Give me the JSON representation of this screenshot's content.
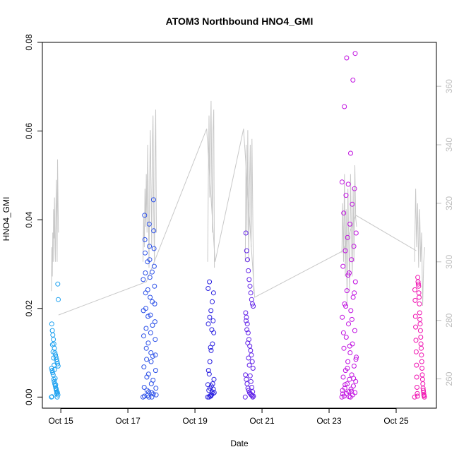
{
  "chart_data": {
    "type": "scatter",
    "title": "ATOM3 Northbound HNO4_GMI",
    "xlabel": "Date",
    "ylabel": "HNO4_GMI",
    "x_ticks": [
      "Oct 15",
      "Oct 17",
      "Oct 19",
      "Oct 21",
      "Oct 23",
      "Oct 25"
    ],
    "x_tick_days": [
      15,
      17,
      19,
      21,
      23,
      25
    ],
    "xlim_days": [
      14.45,
      26.2
    ],
    "ylim": [
      -0.0025,
      0.08
    ],
    "y_ticks": [
      "0.00",
      "0.02",
      "0.04",
      "0.06",
      "0.08"
    ],
    "y_tick_values": [
      0,
      0.02,
      0.04,
      0.06,
      0.08
    ],
    "right_axis": {
      "ylim": [
        250,
        375
      ],
      "ticks": [
        "260",
        "280",
        "300",
        "320",
        "340",
        "360"
      ],
      "tick_values": [
        260,
        280,
        300,
        320,
        340,
        360
      ],
      "color": "#bdbdbd"
    },
    "grid": false,
    "marker": "open-circle",
    "point_color_gradient": [
      "#00a0ff",
      "#0000ff",
      "#c000ff",
      "#ff00c8"
    ],
    "line_color": "#c8c8c8",
    "flights": [
      {
        "start": 14.72,
        "end": 14.93,
        "color": "#1aa0f0",
        "y": [
          0.0,
          0.0005,
          0.001,
          0.0012,
          0.0015,
          0.002,
          0.0025,
          0.003,
          0.0035,
          0.004,
          0.005,
          0.0055,
          0.006,
          0.0065,
          0.007,
          0.0075,
          0.008,
          0.0085,
          0.009,
          0.0095,
          0.01,
          0.011,
          0.012,
          0.013,
          0.014,
          0.015,
          0.0165,
          0.022,
          0.0255,
          0.0,
          0.0008,
          0.0018,
          0.0028,
          0.0042,
          0.0062,
          0.0072,
          0.0088,
          0.0102,
          0.0118,
          0.0001
        ],
        "line": [
          290,
          305,
          295,
          310,
          300,
          318,
          308,
          322,
          305,
          300,
          315,
          328,
          318,
          300,
          335,
          320,
          310
        ]
      },
      {
        "start": 17.45,
        "end": 17.85,
        "color": "#2a4fe8",
        "y": [
          0.0,
          0.0,
          0.0003,
          0.0005,
          0.001,
          0.0015,
          0.002,
          0.003,
          0.0045,
          0.006,
          0.008,
          0.0085,
          0.0095,
          0.01,
          0.011,
          0.013,
          0.0145,
          0.0155,
          0.017,
          0.0185,
          0.02,
          0.021,
          0.0225,
          0.0235,
          0.025,
          0.027,
          0.028,
          0.0295,
          0.031,
          0.0325,
          0.0335,
          0.034,
          0.0355,
          0.0375,
          0.039,
          0.041,
          0.0445,
          0.0,
          0.0002,
          0.0007,
          0.0012,
          0.0022,
          0.0038,
          0.0052,
          0.0068,
          0.0092,
          0.0122,
          0.0138,
          0.0162,
          0.0182,
          0.0195,
          0.0215,
          0.0242,
          0.0265,
          0.0282,
          0.0305
        ],
        "line": [
          300,
          315,
          305,
          325,
          312,
          330,
          310,
          340,
          320,
          298,
          330,
          345,
          325,
          305,
          340,
          350,
          318,
          300,
          335,
          352,
          310
        ]
      },
      {
        "start": 19.38,
        "end": 19.58,
        "color": "#2a20e0",
        "y": [
          0.0,
          0.0,
          0.0003,
          0.0005,
          0.0008,
          0.001,
          0.0015,
          0.002,
          0.0025,
          0.003,
          0.004,
          0.006,
          0.008,
          0.0105,
          0.012,
          0.0145,
          0.0165,
          0.018,
          0.0195,
          0.0215,
          0.0235,
          0.0245,
          0.026,
          0.0002,
          0.0012,
          0.0018,
          0.0028,
          0.0052,
          0.0112,
          0.0152,
          0.0172
        ],
        "line": [
          300,
          330,
          350,
          322,
          340,
          355,
          330,
          310,
          345,
          352,
          298
        ]
      },
      {
        "start": 20.5,
        "end": 20.75,
        "color": "#6020e8",
        "y": [
          0.0,
          0.0,
          0.0003,
          0.0005,
          0.0008,
          0.001,
          0.0015,
          0.002,
          0.003,
          0.004,
          0.005,
          0.0065,
          0.008,
          0.0095,
          0.0105,
          0.0115,
          0.013,
          0.0145,
          0.0165,
          0.018,
          0.019,
          0.0205,
          0.021,
          0.022,
          0.0235,
          0.025,
          0.0265,
          0.0285,
          0.031,
          0.033,
          0.037,
          0.0002,
          0.0012,
          0.0022,
          0.0035,
          0.0048,
          0.0072,
          0.0088,
          0.0122,
          0.0152,
          0.0172
        ],
        "line": [
          300,
          340,
          310,
          345,
          300,
          325,
          340,
          305,
          342,
          315,
          290
        ]
      },
      {
        "start": 23.38,
        "end": 23.82,
        "color": "#c010e0",
        "y": [
          0.0,
          0.0,
          0.0002,
          0.0005,
          0.0008,
          0.001,
          0.0012,
          0.0015,
          0.0018,
          0.002,
          0.0025,
          0.003,
          0.0035,
          0.004,
          0.0045,
          0.005,
          0.006,
          0.007,
          0.008,
          0.009,
          0.01,
          0.011,
          0.012,
          0.0135,
          0.015,
          0.0165,
          0.018,
          0.0195,
          0.021,
          0.0225,
          0.024,
          0.026,
          0.028,
          0.0295,
          0.031,
          0.033,
          0.034,
          0.036,
          0.037,
          0.039,
          0.0415,
          0.0435,
          0.0455,
          0.047,
          0.048,
          0.0485,
          0.055,
          0.0655,
          0.0715,
          0.0765,
          0.0775,
          0.0001,
          0.0007,
          0.0013,
          0.0028,
          0.0042,
          0.0065,
          0.0085,
          0.0115,
          0.0145,
          0.0175,
          0.0205,
          0.0235,
          0.0275
        ],
        "line": [
          303,
          320,
          300,
          330,
          295,
          318,
          285,
          325,
          305,
          290,
          330,
          310,
          295,
          325,
          300,
          333,
          315,
          312
        ]
      },
      {
        "start": 25.55,
        "end": 25.85,
        "color": "#f010b0",
        "y": [
          0.0,
          0.0,
          0.0003,
          0.0005,
          0.001,
          0.0015,
          0.002,
          0.003,
          0.004,
          0.005,
          0.0065,
          0.008,
          0.0095,
          0.011,
          0.012,
          0.0135,
          0.015,
          0.0165,
          0.0175,
          0.019,
          0.021,
          0.0225,
          0.0235,
          0.025,
          0.0255,
          0.026,
          0.027,
          0.0002,
          0.0008,
          0.0022,
          0.0045,
          0.0072,
          0.0102,
          0.0128,
          0.0158,
          0.0182,
          0.0218,
          0.0242
        ],
        "line": [
          300,
          325,
          305,
          320,
          298,
          318,
          300,
          310,
          285,
          300,
          305
        ]
      }
    ],
    "connector_values": [
      {
        "day": 14.93,
        "value": 0.0185
      },
      {
        "day": 17.55,
        "value": 0.026
      },
      {
        "day": 19.35,
        "value": 0.0605
      },
      {
        "day": 19.6,
        "value": 0.0305
      },
      {
        "day": 20.45,
        "value": 0.0605
      },
      {
        "day": 20.78,
        "value": 0.0225
      },
      {
        "day": 23.42,
        "value": 0.033
      },
      {
        "day": 23.8,
        "value": 0.041
      },
      {
        "day": 25.6,
        "value": 0.033
      }
    ]
  }
}
